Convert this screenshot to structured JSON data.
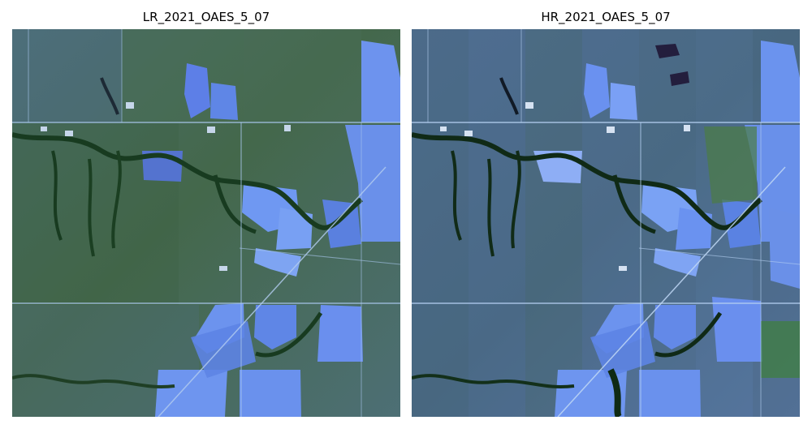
{
  "panels": [
    {
      "title": "LR_2021_OAES_5_07"
    },
    {
      "title": "HR_2021_OAES_5_07"
    }
  ],
  "colors": {
    "background": "#ffffff",
    "vegetation_green": "#3f6a3a",
    "dark_channel_green": "#173a1e",
    "field_blue": "#5f86e6",
    "light_field_blue": "#7ca2f0",
    "road_light": "#a9c7ee",
    "water_dark": "#1d1d3c"
  }
}
